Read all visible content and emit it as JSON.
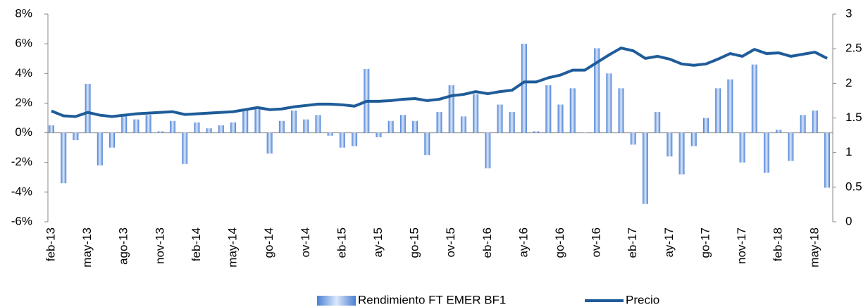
{
  "chart_data": {
    "type": "bar_line",
    "categories": [
      "feb-13",
      null,
      null,
      "may-13",
      null,
      null,
      "ago-13",
      null,
      null,
      "nov-13",
      null,
      null,
      "feb-14",
      null,
      null,
      "may-14",
      null,
      null,
      "go-14",
      null,
      null,
      "ov-14",
      null,
      null,
      "eb-15",
      null,
      null,
      "ay-15",
      null,
      null,
      "go-15",
      null,
      null,
      "ov-15",
      null,
      null,
      "eb-16",
      null,
      null,
      "ay-16",
      null,
      null,
      "go-16",
      null,
      null,
      "ov-16",
      null,
      null,
      "eb-17",
      null,
      null,
      "ay-17",
      null,
      null,
      "go-17",
      null,
      null,
      "nov-17",
      null,
      null,
      "feb-18",
      null,
      null,
      "may-18",
      null
    ],
    "series": [
      {
        "name": "Rendimiento FT EMER BF1",
        "type": "bar",
        "color": "#4a7fd4",
        "values": [
          0.5,
          -3.4,
          -0.5,
          3.3,
          -2.2,
          -1.0,
          1.2,
          0.9,
          1.2,
          0.1,
          0.8,
          -2.1,
          0.7,
          0.3,
          0.5,
          0.7,
          1.6,
          1.6,
          -1.4,
          0.8,
          1.5,
          0.9,
          1.2,
          -0.2,
          -1.0,
          -0.9,
          4.3,
          -0.3,
          0.8,
          1.2,
          0.8,
          -1.5,
          1.4,
          3.2,
          1.1,
          2.6,
          -2.4,
          1.9,
          1.4,
          6.0,
          0.1,
          3.2,
          1.9,
          3.0,
          0.0,
          5.7,
          4.0,
          3.0,
          -0.8,
          -4.8,
          1.4,
          -1.6,
          -2.8,
          -0.9,
          1.0,
          3.0,
          3.6,
          -2.0,
          4.6,
          -2.7,
          0.2,
          -1.9,
          1.2,
          1.5,
          -3.7
        ]
      },
      {
        "name": "Precio",
        "type": "line",
        "axis": "y2",
        "color": "#1f5c99",
        "values": [
          1.6,
          1.53,
          1.52,
          1.58,
          1.54,
          1.52,
          1.54,
          1.56,
          1.57,
          1.58,
          1.59,
          1.55,
          1.56,
          1.57,
          1.58,
          1.59,
          1.62,
          1.65,
          1.62,
          1.63,
          1.66,
          1.68,
          1.7,
          1.7,
          1.69,
          1.67,
          1.74,
          1.74,
          1.75,
          1.77,
          1.78,
          1.75,
          1.77,
          1.82,
          1.84,
          1.88,
          1.85,
          1.88,
          1.9,
          2.02,
          2.02,
          2.08,
          2.12,
          2.19,
          2.19,
          2.3,
          2.41,
          2.51,
          2.47,
          2.36,
          2.39,
          2.35,
          2.28,
          2.26,
          2.28,
          2.35,
          2.43,
          2.39,
          2.49,
          2.43,
          2.44,
          2.39,
          2.42,
          2.45,
          2.36
        ]
      }
    ],
    "ylim": [
      -6,
      8
    ],
    "yticks": [
      {
        "value": -6,
        "label": "-6%"
      },
      {
        "value": -4,
        "label": "-4%"
      },
      {
        "value": -2,
        "label": "-2%"
      },
      {
        "value": 0,
        "label": "0%"
      },
      {
        "value": 2,
        "label": "2%"
      },
      {
        "value": 4,
        "label": "4%"
      },
      {
        "value": 6,
        "label": "6%"
      },
      {
        "value": 8,
        "label": "8%"
      }
    ],
    "y2lim": [
      0,
      3
    ],
    "y2ticks": [
      0,
      0.5,
      1,
      1.5,
      2,
      2.5,
      3
    ],
    "legend": "bottom"
  }
}
